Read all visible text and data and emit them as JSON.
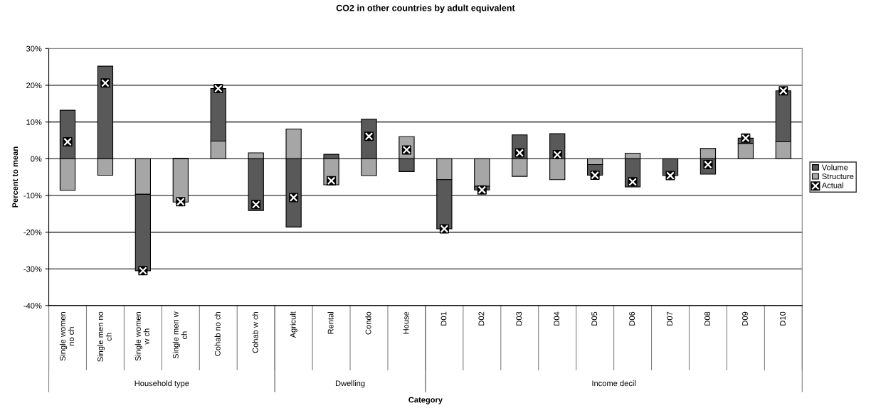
{
  "chart_data": {
    "type": "bar",
    "stacked": true,
    "title": "CO2 in other countries by adult equivalent",
    "xlabel": "Category",
    "ylabel": "Percent to mean",
    "categories": [
      "Single women\nno ch",
      "Single men no\nch",
      "Single women\nw ch",
      "Single men w\nch",
      "Cohab no ch",
      "Cohab w ch",
      "Agricult",
      "Rental",
      "Condo",
      "House",
      "D01",
      "D02",
      "D03",
      "D04",
      "D05",
      "D06",
      "D07",
      "D08",
      "D09",
      "D10"
    ],
    "series": [
      {
        "name": "Structure",
        "color": "#a6a6a6",
        "values": [
          -8.6,
          -4.5,
          -9.7,
          -11.8,
          4.8,
          1.6,
          8.1,
          -7.1,
          -4.6,
          6.0,
          -5.7,
          -7.5,
          -4.8,
          -5.7,
          -1.6,
          1.5,
          null,
          2.8,
          4.2,
          4.6
        ]
      },
      {
        "name": "Volume",
        "color": "#595959",
        "values": [
          13.2,
          25.2,
          -20.8,
          0.1,
          14.3,
          -14.1,
          -18.6,
          1.2,
          10.8,
          -3.5,
          -13.4,
          -1.0,
          6.5,
          6.8,
          -2.9,
          -7.7,
          -4.6,
          -4.2,
          1.4,
          13.9
        ]
      },
      {
        "name": "Actual",
        "type": "scatter",
        "marker": "square",
        "color": "#000000",
        "values": [
          4.6,
          20.6,
          -30.5,
          -11.7,
          19.1,
          -12.5,
          -10.6,
          -6.0,
          6.1,
          2.4,
          -19.1,
          -8.5,
          1.6,
          1.1,
          -4.5,
          -6.3,
          -4.6,
          -1.6,
          5.6,
          18.5
        ]
      }
    ],
    "ylim": [
      -40,
      30
    ],
    "yticks": [
      {
        "value": -40,
        "label": "-40%"
      },
      {
        "value": -30,
        "label": "-30%"
      },
      {
        "value": -20,
        "label": "-20%"
      },
      {
        "value": -10,
        "label": "-10%"
      },
      {
        "value": 0,
        "label": "0%"
      },
      {
        "value": 10,
        "label": "10%"
      },
      {
        "value": 20,
        "label": "20%"
      },
      {
        "value": 30,
        "label": "30%"
      }
    ],
    "grid": "y",
    "legend": "right",
    "annotations": [
      "Household type",
      "Dwelling",
      "Income decil"
    ]
  }
}
